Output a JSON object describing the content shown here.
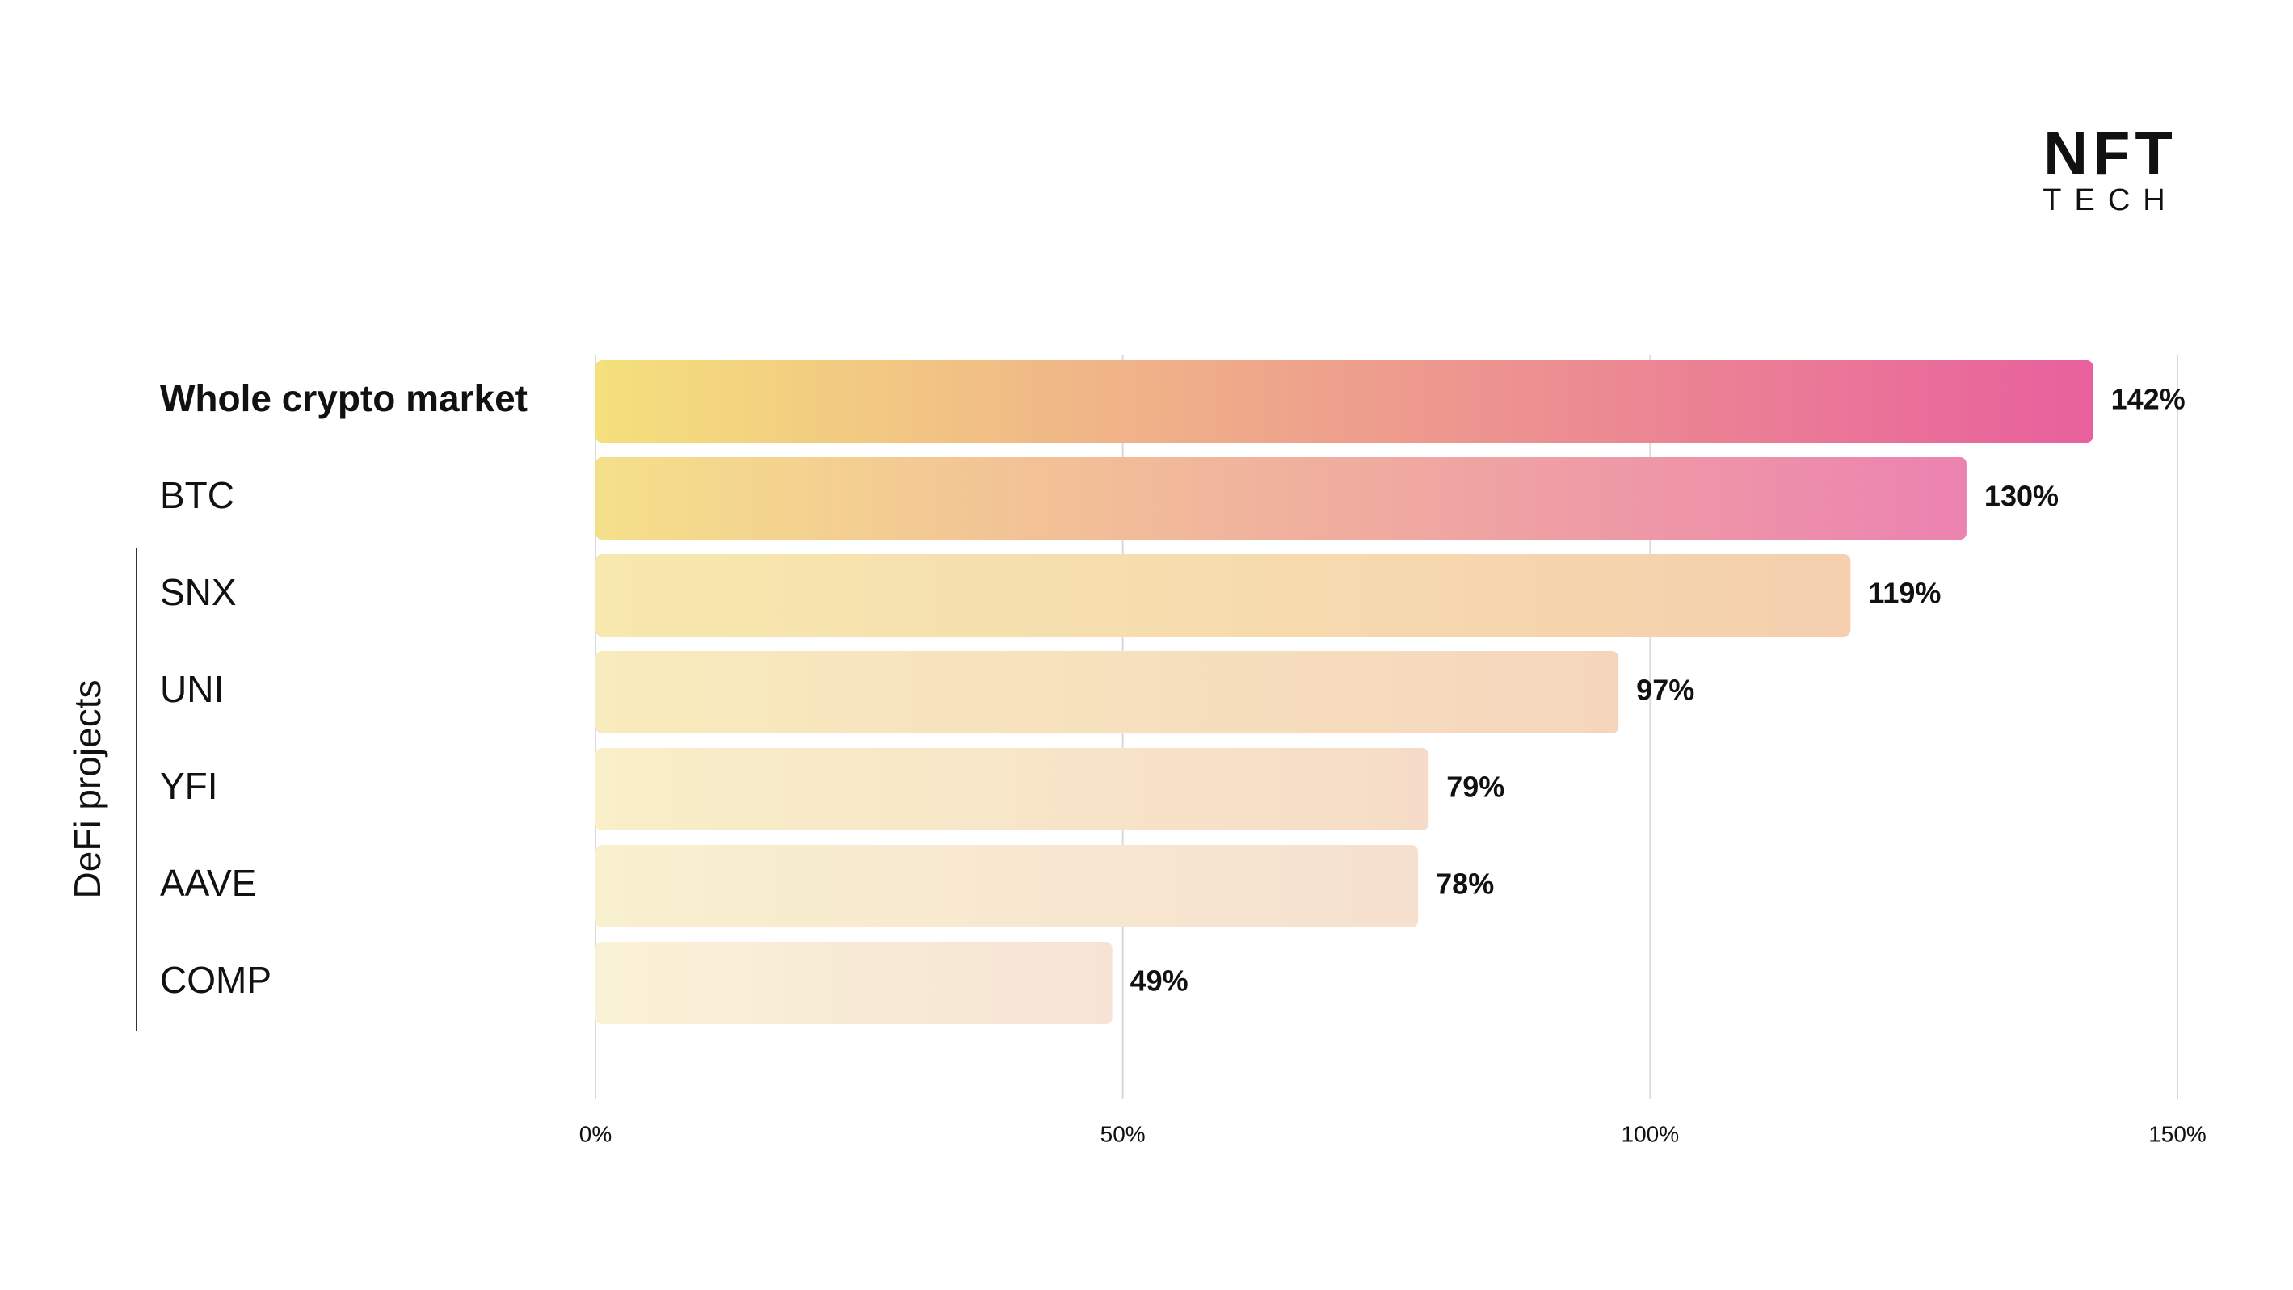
{
  "logo": {
    "title": "NFT",
    "subtitle": "TECH"
  },
  "chart_data": {
    "type": "bar",
    "orientation": "horizontal",
    "categories": [
      "Whole crypto market",
      "BTC",
      "SNX",
      "UNI",
      "YFI",
      "AAVE",
      "COMP"
    ],
    "values": [
      142,
      130,
      119,
      97,
      79,
      78,
      49
    ],
    "value_labels": [
      "142%",
      "130%",
      "119%",
      "97%",
      "79%",
      "78%",
      "49%"
    ],
    "bar_gradients": [
      [
        "#f4e07c",
        "#e8609d"
      ],
      [
        "#f5e08a",
        "#ec82b0"
      ],
      [
        "#f7e8ae",
        "#f5cfae"
      ],
      [
        "#f8ebbd",
        "#f5d6bd"
      ],
      [
        "#f9efc8",
        "#f6dcc8"
      ],
      [
        "#f9f0cf",
        "#f6e0d0"
      ],
      [
        "#faf2d6",
        "#f6e3d5"
      ]
    ],
    "group": {
      "label": "DeFi projects",
      "from": 2,
      "to": 6
    },
    "xlim": [
      0,
      150
    ],
    "xticks": [
      {
        "value": 0,
        "label": "0%"
      },
      {
        "value": 50,
        "label": "50%"
      },
      {
        "value": 100,
        "label": "100%"
      },
      {
        "value": 150,
        "label": "150%"
      }
    ],
    "grid": true,
    "grid_color": "#d9d9d9"
  }
}
